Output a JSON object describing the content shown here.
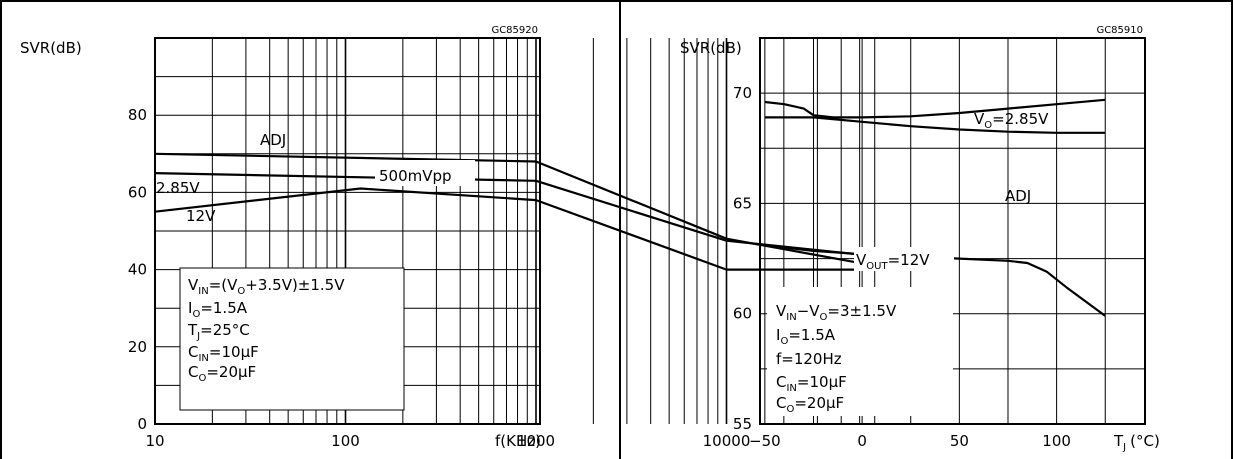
{
  "chart_data": [
    {
      "type": "line",
      "code": "GC85920",
      "xlabel": "f(KHz)",
      "ylabel": "SVR(dB)",
      "xscale": "log",
      "xlim": [
        10,
        70000
      ],
      "ylim": [
        0,
        100
      ],
      "grid": true,
      "xticks": [
        "10",
        "100",
        "1000",
        "10000"
      ],
      "yticks": [
        "0",
        "20",
        "40",
        "60",
        "80"
      ],
      "series": [
        {
          "name": "ADJ",
          "x": [
            10,
            1000,
            10000,
            60000
          ],
          "y": [
            70,
            68,
            48,
            41
          ]
        },
        {
          "name": "2.85V",
          "x": [
            10,
            1000,
            10000,
            60000
          ],
          "y": [
            65,
            63,
            47.5,
            43.5
          ]
        },
        {
          "name": "12V",
          "x": [
            10,
            120,
            1000,
            10000,
            60000
          ],
          "y": [
            55,
            61,
            58,
            40,
            40
          ]
        }
      ],
      "annotations": [
        {
          "text": "500mVpp"
        },
        {
          "text": "V",
          "sub": "IN",
          "rest": "=(V",
          "sub2": "O",
          "rest2": "+3.5V)±1.5V"
        },
        {
          "text": "I",
          "sub": "O",
          "rest": "=1.5A"
        },
        {
          "text": "T",
          "sub": "J",
          "rest": "=25°C"
        },
        {
          "text": "C",
          "sub": "IN",
          "rest": "=10μF"
        },
        {
          "text": "C",
          "sub": "O",
          "rest": "=20μF"
        }
      ]
    },
    {
      "type": "line",
      "code": "GC85910",
      "xlabel": "T",
      "xlabel_sub": "J",
      "xlabel_unit": "(°C)",
      "ylabel": "SVR(dB)",
      "xlim": [
        -50,
        125
      ],
      "ylim": [
        55,
        72.5
      ],
      "grid": true,
      "xticks": [
        "-50",
        "0",
        "50",
        "100"
      ],
      "yticks": [
        "55",
        "60",
        "65",
        "70"
      ],
      "series": [
        {
          "name": "V_O=2.85V",
          "x": [
            -50,
            -40,
            -30,
            -25,
            -15,
            0,
            25,
            50,
            75,
            100,
            125
          ],
          "y": [
            69.6,
            69.5,
            69.3,
            69.0,
            68.9,
            68.9,
            68.95,
            69.1,
            69.3,
            69.5,
            69.7
          ]
        },
        {
          "name": "ADJ",
          "x": [
            -50,
            -25,
            0,
            25,
            50,
            75,
            100,
            125
          ],
          "y": [
            68.9,
            68.9,
            68.7,
            68.5,
            68.35,
            68.25,
            68.2,
            68.2
          ]
        },
        {
          "name": "V_OUT=12V",
          "x": [
            -50,
            -25,
            0,
            25,
            50,
            75,
            85,
            95,
            105,
            125
          ],
          "y": [
            63.1,
            62.85,
            62.7,
            62.6,
            62.5,
            62.4,
            62.3,
            61.9,
            61.2,
            59.9
          ]
        }
      ],
      "labels": {
        "vo": {
          "main": "V",
          "sub": "O",
          "rest": "=2.85V"
        },
        "adj": {
          "main": "ADJ"
        },
        "vout": {
          "main": "V",
          "sub": "OUT",
          "rest": "=12V"
        }
      },
      "annotations": [
        {
          "text": "V",
          "sub": "IN",
          "rest": "−V",
          "sub2": "O",
          "rest2": "=3±1.5V"
        },
        {
          "text": "I",
          "sub": "O",
          "rest": "=1.5A"
        },
        {
          "text": "f=120Hz"
        },
        {
          "text": "C",
          "sub": "IN",
          "rest": "=10μF"
        },
        {
          "text": "C",
          "sub": "O",
          "rest": "=20μF"
        }
      ]
    }
  ]
}
